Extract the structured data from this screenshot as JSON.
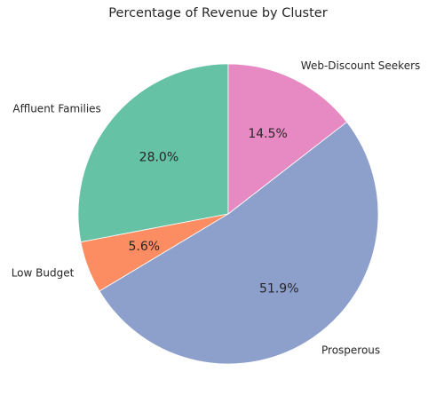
{
  "chart_data": {
    "type": "pie",
    "title": "Percentage of Revenue by Cluster",
    "slices": [
      {
        "label": "Affluent Families",
        "value": 28.0,
        "pct_text": "28.0%",
        "color": "#66c2a5"
      },
      {
        "label": "Low Budget",
        "value": 5.6,
        "pct_text": "5.6%",
        "color": "#fc8d62"
      },
      {
        "label": "Prosperous",
        "value": 51.9,
        "pct_text": "51.9%",
        "color": "#8da0cb"
      },
      {
        "label": "Web-Discount Seekers",
        "value": 14.5,
        "pct_text": "14.5%",
        "color": "#e78ac3"
      }
    ],
    "start_angle_deg": 90,
    "direction": "counterclockwise",
    "legend": "none"
  }
}
